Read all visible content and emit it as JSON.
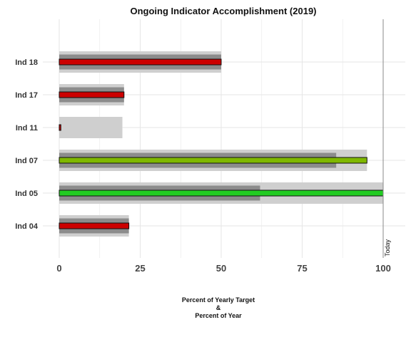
{
  "chart_data": {
    "type": "bar",
    "orientation": "horizontal",
    "title": "Ongoing Indicator Accomplishment (2019)",
    "xlabel_lines": [
      "Percent of Yearly Target",
      "&",
      "Percent of Year"
    ],
    "ylabel": "",
    "xlim": [
      0,
      104
    ],
    "xticks": [
      0,
      25,
      50,
      75,
      100
    ],
    "grid": true,
    "today_value": 100,
    "today_label": "Today",
    "categories": [
      "Ind 18",
      "Ind 17",
      "Ind 11",
      "Ind 07",
      "Ind 05",
      "Ind 04"
    ],
    "series": [
      {
        "values": [
          50,
          20,
          19.5,
          95,
          100,
          21.5
        ]
      },
      {
        "values": [
          50,
          20,
          0,
          85.5,
          62,
          21.5
        ]
      },
      {
        "values": [
          50,
          20,
          0.5,
          95,
          100,
          21.5
        ]
      }
    ],
    "status_colors": [
      "#cc0000",
      "#cc0000",
      "#cc0000",
      "#7fb800",
      "#22cc22",
      "#cc0000"
    ],
    "colors": {
      "light_band": "#cfcfcf",
      "dark_band": "#8c8c8c",
      "grid": "#e6e6e6",
      "today_line": "#888888"
    }
  }
}
